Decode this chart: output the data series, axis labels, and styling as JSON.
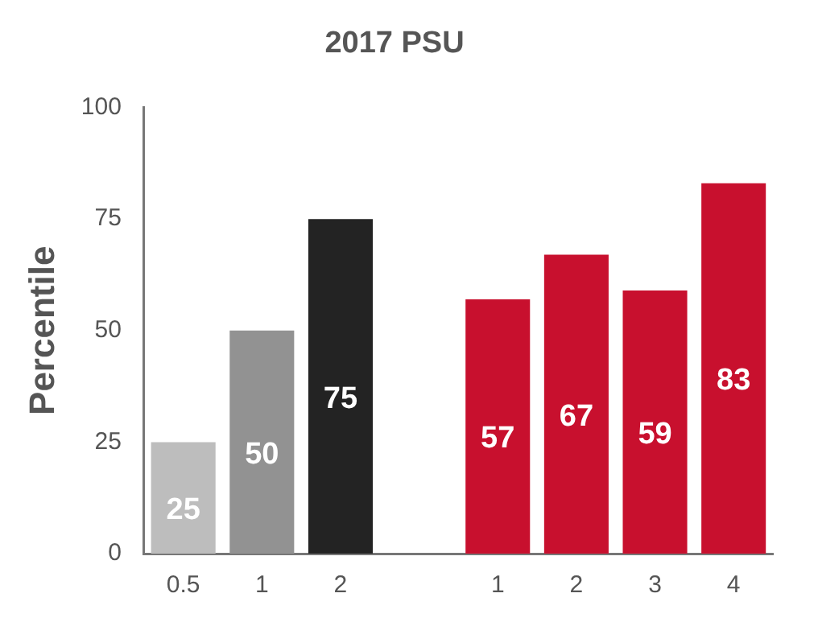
{
  "chart_data": {
    "type": "bar",
    "title": "2017 PSU",
    "ylabel": "Percentile",
    "categories": [
      "0.5",
      "1",
      "2",
      null,
      "1",
      "2",
      "3",
      "4"
    ],
    "values": [
      25,
      50,
      75,
      null,
      57,
      67,
      59,
      83
    ],
    "colors": [
      "#bdbdbd",
      "#929292",
      "#232323",
      null,
      "#c8102e",
      "#c8102e",
      "#c8102e",
      "#c8102e"
    ],
    "ylim": [
      0,
      100
    ],
    "yticks": [
      0,
      25,
      50,
      75,
      100
    ],
    "grid": false,
    "legend": false,
    "data_labels": true
  }
}
